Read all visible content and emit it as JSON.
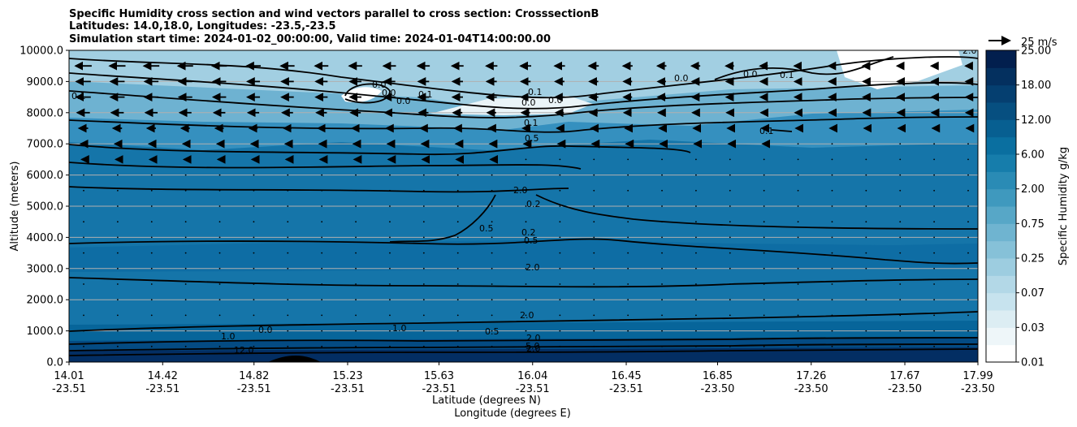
{
  "chart_data": {
    "type": "heatmap",
    "title_lines": [
      "Specific Humidity cross section and wind vectors parallel to cross section: CrosssectionB",
      "Latitudes: 14.0,18.0, Longitudes: -23.5,-23.5",
      "Simulation start time: 2024-01-02_00:00:00, Valid time: 2024-01-04T14:00:00.00"
    ],
    "ylabel": "Altitude (meters)",
    "xlabel_lines": [
      "Latitude (degrees N)",
      "Longitude (degrees E)"
    ],
    "ylim": [
      0,
      10000
    ],
    "xlim": [
      14.01,
      17.99
    ],
    "y_ticks": [
      {
        "value": 0,
        "label": "0.0"
      },
      {
        "value": 1000,
        "label": "1000.0"
      },
      {
        "value": 2000,
        "label": "2000.0"
      },
      {
        "value": 3000,
        "label": "3000.0"
      },
      {
        "value": 4000,
        "label": "4000.0"
      },
      {
        "value": 5000,
        "label": "5000.0"
      },
      {
        "value": 6000,
        "label": "6000.0"
      },
      {
        "value": 7000,
        "label": "7000.0"
      },
      {
        "value": 8000,
        "label": "8000.0"
      },
      {
        "value": 9000,
        "label": "9000.0"
      },
      {
        "value": 10000,
        "label": "10000.0"
      }
    ],
    "x_ticks": [
      {
        "value": 14.01,
        "lat": "14.01",
        "lon": "-23.51"
      },
      {
        "value": 14.42,
        "lat": "14.42",
        "lon": "-23.51"
      },
      {
        "value": 14.82,
        "lat": "14.82",
        "lon": "-23.51"
      },
      {
        "value": 15.23,
        "lat": "15.23",
        "lon": "-23.51"
      },
      {
        "value": 15.63,
        "lat": "15.63",
        "lon": "-23.51"
      },
      {
        "value": 16.04,
        "lat": "16.04",
        "lon": "-23.51"
      },
      {
        "value": 16.45,
        "lat": "16.45",
        "lon": "-23.51"
      },
      {
        "value": 16.85,
        "lat": "16.85",
        "lon": "-23.50"
      },
      {
        "value": 17.26,
        "lat": "17.26",
        "lon": "-23.50"
      },
      {
        "value": 17.67,
        "lat": "17.67",
        "lon": "-23.50"
      },
      {
        "value": 17.99,
        "lat": "17.99",
        "lon": "-23.50"
      }
    ],
    "grid": "horizontal",
    "colorbar": {
      "label": "Specific Humidity g/kg",
      "levels": [
        "0.01",
        "0.03",
        "0.07",
        "0.25",
        "0.75",
        "2.00",
        "6.00",
        "12.00",
        "18.00",
        "25.00"
      ],
      "colors": [
        "#ffffff",
        "#eef6f9",
        "#dcedf3",
        "#c7e3ee",
        "#b3d8e7",
        "#9dcde0",
        "#86c1d8",
        "#6fb4d0",
        "#57a7c7",
        "#3f99be",
        "#2a8bb5",
        "#167dab",
        "#0a6fa0",
        "#075f91",
        "#064f80",
        "#053f70",
        "#04305f",
        "#021f4e"
      ]
    },
    "wind_key": {
      "label": "25 m/s"
    },
    "wind_vectors": [
      {
        "altitude": 9500,
        "u": -9
      },
      {
        "altitude": 9000,
        "u": -8
      },
      {
        "altitude": 8500,
        "u": -8
      },
      {
        "altitude": 8000,
        "u": -7
      },
      {
        "altitude": 7500,
        "u": -5
      },
      {
        "altitude": 7000,
        "u": -3
      },
      {
        "altitude": 6500,
        "u": -2
      },
      {
        "altitude": 6000,
        "u": -1
      }
    ],
    "contour_labels": [
      "0.1",
      "0.0",
      "0.0",
      "0.0",
      "0.0",
      "0.1",
      "0.1",
      "0.0",
      "0.0",
      "0.1",
      "0.5",
      "0.1",
      "2.0",
      "0.2",
      "0.5",
      "0.2",
      "0.5",
      "2.0",
      "2.0",
      "1.0",
      "0.0",
      "0.5",
      "2.0",
      "5.0",
      "2.0",
      "12.0",
      "2.0",
      "0.1",
      "0.1",
      "0.0",
      "1.0"
    ]
  }
}
